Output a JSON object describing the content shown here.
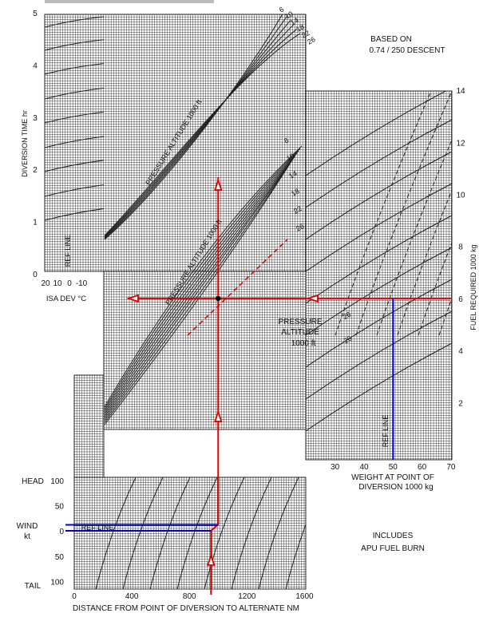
{
  "chart_data": {
    "type": "line",
    "title": "",
    "notes": {
      "based_on_line1": "BASED ON",
      "based_on_line2": "0.74 / 250 DESCENT",
      "includes_line1": "INCLUDES",
      "includes_line2": "APU FUEL BURN",
      "pressure_altitude_line1": "PRESSURE",
      "pressure_altitude_line2": "ALTITUDE",
      "pressure_altitude_line3": "1000 ft",
      "pa_curve_label": "PRESSURE ALTITUDE 1000 ft",
      "ref_line": "REF LINE"
    },
    "panels": {
      "diversion_time": {
        "ylabel": "DIVERSION TIME  hr",
        "ylim": [
          0,
          5
        ],
        "yticks": [
          "0",
          "1",
          "2",
          "3",
          "4",
          "5"
        ],
        "xlabel": "ISA DEV °C",
        "xticks": [
          "20",
          "10",
          "0",
          "-10"
        ],
        "curve_labels": [
          "6",
          "10",
          "14",
          "18",
          "22",
          "26"
        ]
      },
      "fuel_required": {
        "ylabel": "FUEL REQUIRED  1000 kg",
        "ylim": [
          0,
          14
        ],
        "yticks": [
          "2",
          "4",
          "6",
          "8",
          "10",
          "12",
          "14"
        ],
        "xlabel": "WEIGHT AT POINT OF",
        "xlabel2": "DIVERSION  1000 kg",
        "xlim": [
          30,
          70
        ],
        "xticks": [
          "30",
          "40",
          "50",
          "60",
          "70"
        ],
        "curve_labels": [
          "6",
          "10",
          "14",
          "18",
          "22",
          "26"
        ],
        "dashed_labels": [
          "26",
          "26"
        ]
      },
      "wind": {
        "ylabel": "WIND",
        "ylabel2": "kt",
        "head_label": "HEAD",
        "tail_label": "TAIL",
        "yticks": [
          "100",
          "50",
          "0",
          "50",
          "100"
        ],
        "xlabel": "DISTANCE FROM POINT OF DIVERSION TO ALTERNATE  NM",
        "xlim": [
          0,
          1600
        ],
        "xticks": [
          "0",
          "400",
          "800",
          "1200",
          "1600"
        ]
      }
    },
    "example": {
      "distance_nm": 950,
      "wind_kt": 0,
      "pressure_altitude_1000ft": 26,
      "weight_1000kg": 50,
      "fuel_required_1000kg": 6
    },
    "colors": {
      "example_path": "#e00000",
      "ref_line": "#0000cc",
      "grid": "#2a2a2a"
    }
  }
}
